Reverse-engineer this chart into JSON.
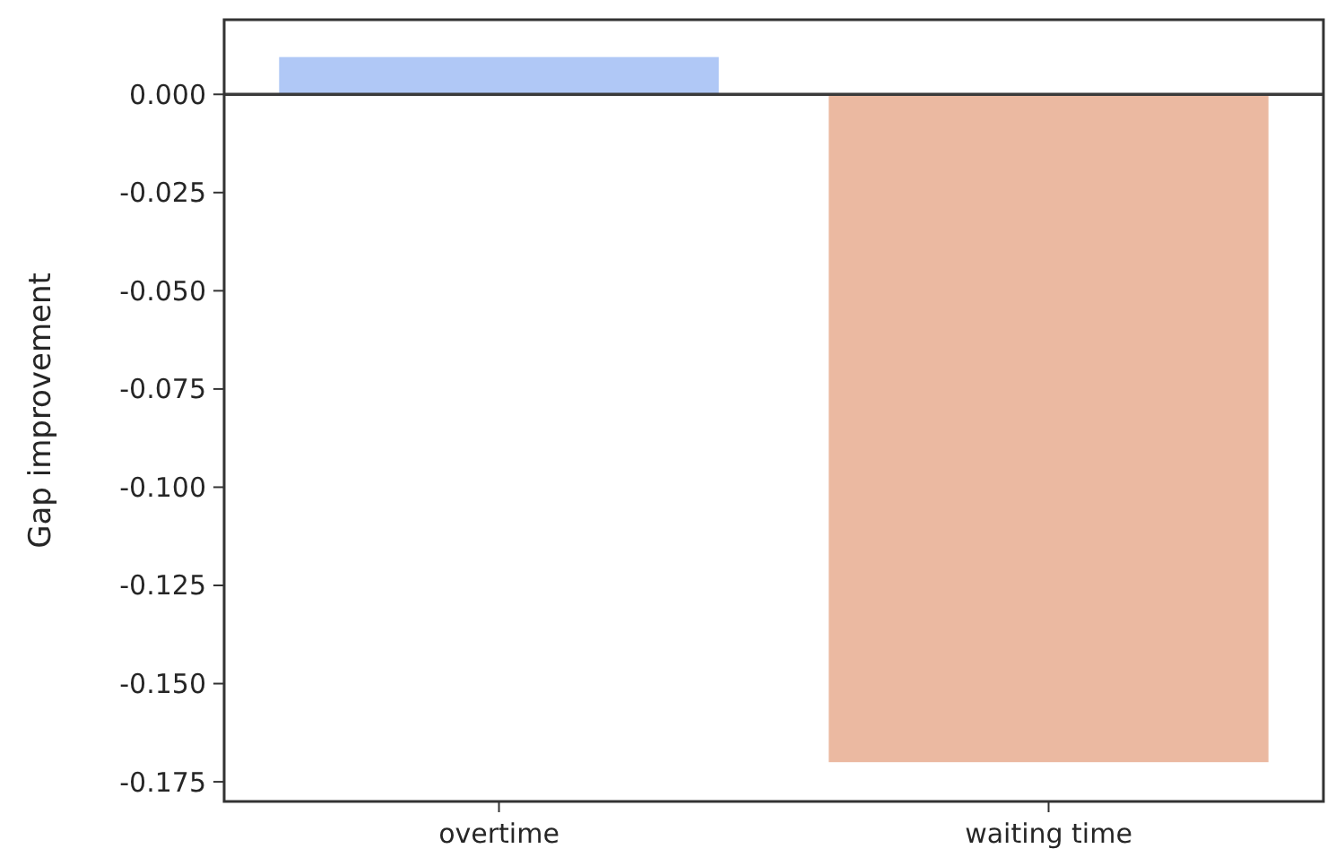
{
  "chart_data": {
    "type": "bar",
    "ylabel": "Gap improvement",
    "categories": [
      "overtime",
      "waiting time"
    ],
    "values": [
      0.0095,
      -0.17
    ],
    "colors": [
      "#b0c8f6",
      "#ebb9a1"
    ],
    "ylim": [
      -0.18,
      0.019
    ],
    "yticks": [
      {
        "value": 0,
        "label": "0.000"
      },
      {
        "value": -0.025,
        "label": "-0.025"
      },
      {
        "value": -0.05,
        "label": "-0.050"
      },
      {
        "value": -0.075,
        "label": "-0.075"
      },
      {
        "value": -0.1,
        "label": "-0.100"
      },
      {
        "value": -0.125,
        "label": "-0.125"
      },
      {
        "value": -0.15,
        "label": "-0.150"
      },
      {
        "value": -0.175,
        "label": "-0.175"
      }
    ],
    "ref_lines": [
      {
        "axis": "y",
        "value": 0,
        "color": "#3a3a3a"
      }
    ],
    "grid": false
  }
}
